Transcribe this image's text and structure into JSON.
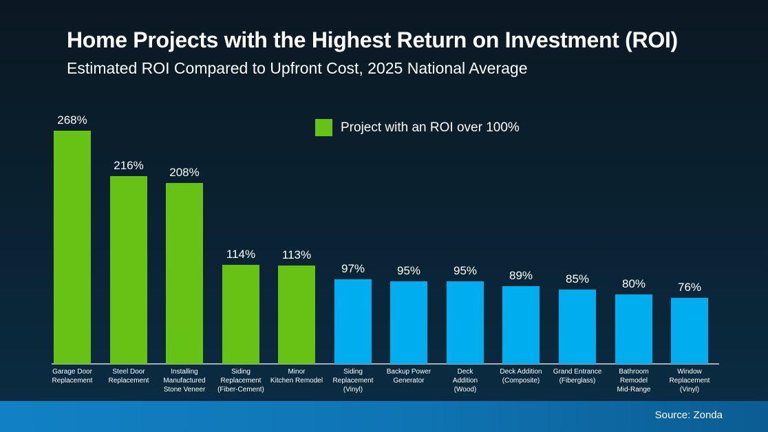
{
  "header": {
    "title": "Home Projects with the Highest Return on Investment (ROI)",
    "subtitle": "Estimated ROI Compared to Upfront Cost, 2025 National Average"
  },
  "legend": {
    "label": "Project with an ROI over 100%",
    "swatch_color": "#66C214"
  },
  "footer": {
    "source": "Source: Zonda"
  },
  "colors": {
    "highlight_green": "#66C214",
    "bar_blue": "#00AEEF",
    "background_top": "#0B1822",
    "background_bottom": "#0A2D44",
    "footer_gradient_left": "#1181C5",
    "footer_gradient_right": "#0B5C92",
    "axis_line": "#A8B0B6",
    "text": "#FFFFFF"
  },
  "chart_data": {
    "type": "bar",
    "title": "Home Projects with the Highest Return on Investment (ROI)",
    "subtitle": "Estimated ROI Compared to Upfront Cost, 2025 National Average",
    "unit": "%",
    "ylim": [
      0,
      280
    ],
    "grid": false,
    "legend_position": "top-center",
    "legend_entries": [
      {
        "label": "Project with an ROI over 100%",
        "color": "#66C214"
      }
    ],
    "categories": [
      "Garage Door\nReplacement",
      "Steel Door\nReplacement",
      "Installing\nManufactured\nStone Veneer",
      "Siding\nReplacement\n(Fiber-Cement)",
      "Minor\nKitchen Remodel",
      "Siding\nReplacement\n(Vinyl)",
      "Backup Power\nGenerator",
      "Deck\nAddition\n(Wood)",
      "Deck Addition\n(Composite)",
      "Grand Entrance\n(Fiberglass)",
      "Bathroom\nRemodel\nMid-Range",
      "Window\nReplacement\n(Vinyl)"
    ],
    "values": [
      268,
      216,
      208,
      114,
      113,
      97,
      95,
      95,
      89,
      85,
      80,
      76
    ],
    "value_labels": [
      "268%",
      "216%",
      "208%",
      "114%",
      "113%",
      "97%",
      "95%",
      "95%",
      "89%",
      "85%",
      "80%",
      "76%"
    ],
    "highlight_over_100": [
      true,
      true,
      true,
      true,
      true,
      false,
      false,
      false,
      false,
      false,
      false,
      false
    ],
    "source": "Source: Zonda"
  }
}
